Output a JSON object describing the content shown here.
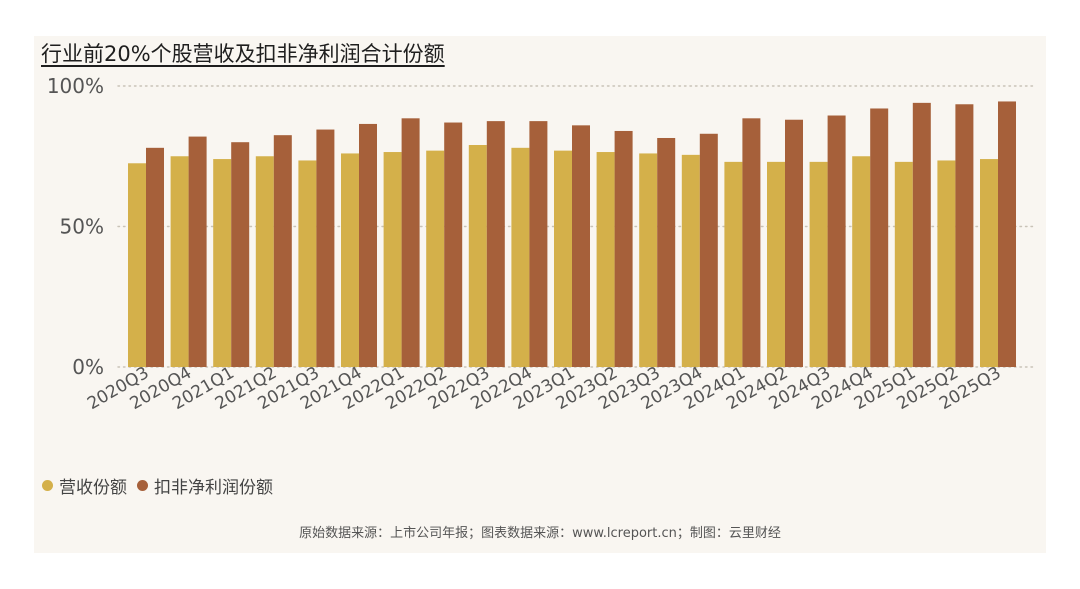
{
  "title": "行业前20%个股营收及扣非净利润合计份额",
  "source": "原始数据来源：上市公司年报；图表数据来源：www.lcreport.cn；制图：云里财经",
  "colors": {
    "revenue": "#d4b04a",
    "profit": "#a6603a",
    "background": "#f9f6f1"
  },
  "chart_data": {
    "type": "bar",
    "title": "行业前20%个股营收及扣非净利润合计份额",
    "categories": [
      "2020Q3",
      "2020Q4",
      "2021Q1",
      "2021Q2",
      "2021Q3",
      "2021Q4",
      "2022Q1",
      "2022Q2",
      "2022Q3",
      "2022Q4",
      "2023Q1",
      "2023Q2",
      "2023Q3",
      "2023Q4",
      "2024Q1",
      "2024Q2",
      "2024Q3",
      "2024Q4",
      "2025Q1",
      "2025Q2",
      "2025Q3"
    ],
    "series": [
      {
        "name": "营收份额",
        "color": "#d4b04a",
        "values": [
          72.5,
          75,
          74,
          75,
          73.5,
          76,
          76.5,
          77,
          79,
          78,
          77,
          76.5,
          76,
          75.5,
          73,
          73,
          73,
          75,
          73,
          73.5,
          74
        ]
      },
      {
        "name": "扣非净利润份额",
        "color": "#a6603a",
        "values": [
          78,
          82,
          80,
          82.5,
          84.5,
          86.5,
          88.5,
          87,
          87.5,
          87.5,
          86,
          84,
          81.5,
          83,
          88.5,
          88,
          89.5,
          92,
          94,
          93.5,
          94.5
        ]
      }
    ],
    "yticks": [
      "0%",
      "50%",
      "100%"
    ],
    "ylim": [
      0,
      100
    ],
    "xlabel": "",
    "ylabel": "",
    "grid": true,
    "legend_position": "bottom-left"
  }
}
